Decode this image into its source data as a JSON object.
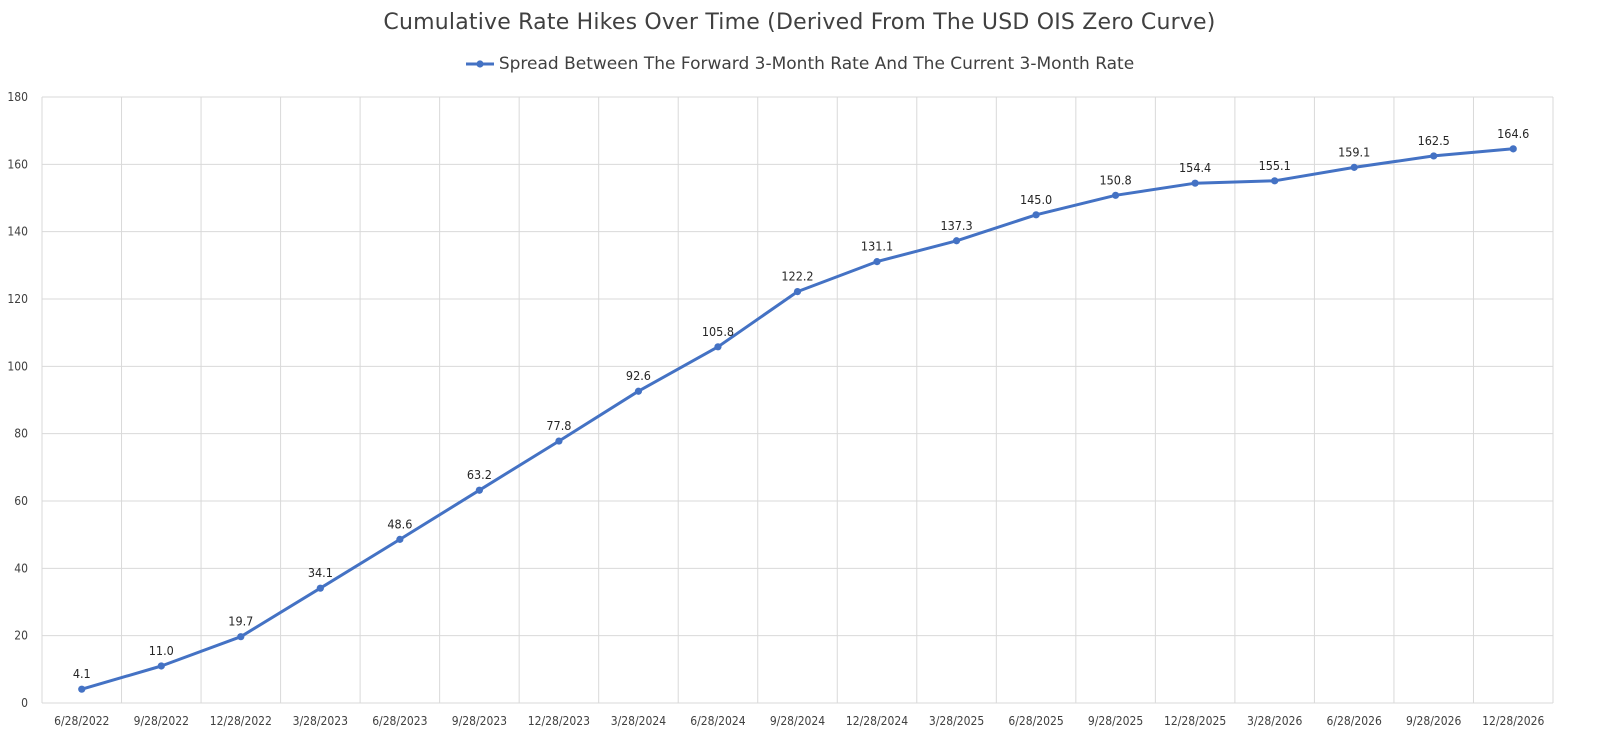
{
  "chart_data": {
    "type": "line",
    "title": "Cumulative Rate Hikes Over Time (Derived From The USD OIS Zero Curve)",
    "xlabel": "",
    "ylabel": "",
    "legend_position": "top",
    "grid": true,
    "categories": [
      "6/28/2022",
      "9/28/2022",
      "12/28/2022",
      "3/28/2023",
      "6/28/2023",
      "9/28/2023",
      "12/28/2023",
      "3/28/2024",
      "6/28/2024",
      "9/28/2024",
      "12/28/2024",
      "3/28/2025",
      "6/28/2025",
      "9/28/2025",
      "12/28/2025",
      "3/28/2026",
      "6/28/2026",
      "9/28/2026",
      "12/28/2026"
    ],
    "ylim": [
      0,
      180
    ],
    "yticks": [
      0,
      20,
      40,
      60,
      80,
      100,
      120,
      140,
      160,
      180
    ],
    "series": [
      {
        "name": "Spread Between The Forward 3-Month Rate And The Current 3-Month Rate",
        "color": "#4472C4",
        "values": [
          4.1,
          11.0,
          19.7,
          34.1,
          48.6,
          63.2,
          77.8,
          92.6,
          105.8,
          122.2,
          131.1,
          137.3,
          145.0,
          150.8,
          154.4,
          155.1,
          159.1,
          162.5,
          164.6
        ],
        "labels": [
          "4.1",
          "11.0",
          "19.7",
          "34.1",
          "48.6",
          "63.2",
          "77.8",
          "92.6",
          "105.8",
          "122.2",
          "131.1",
          "137.3",
          "145.0",
          "150.8",
          "154.4",
          "155.1",
          "159.1",
          "162.5",
          "164.6"
        ]
      }
    ],
    "gridline_color": "#D9D9D9"
  }
}
